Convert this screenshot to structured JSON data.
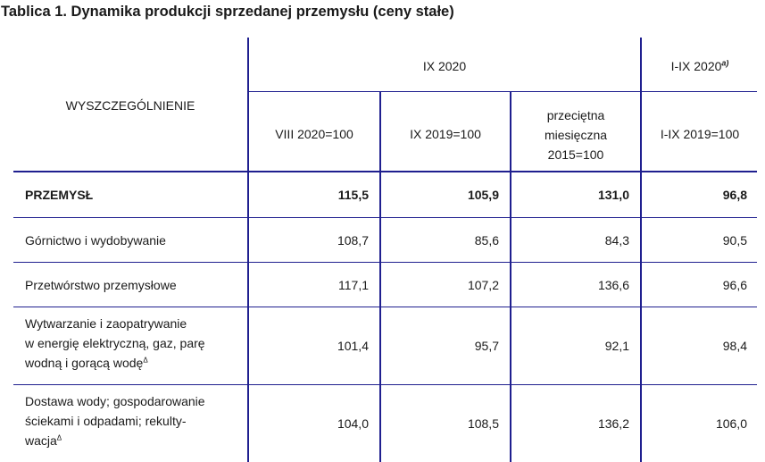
{
  "title": "Tablica 1. Dynamika produkcji sprzedanej przemysłu (ceny stałe)",
  "header": {
    "row_label": "WYSZCZEGÓLNIENIE",
    "group1": "IX 2020",
    "group2": "I-IX 2020",
    "group2_footnote": "a)",
    "col1": "VIII 2020=100",
    "col2": "IX 2019=100",
    "col3_line1": "przeciętna",
    "col3_line2": "miesięczna",
    "col3_line3": "2015=100",
    "col4": "I-IX 2019=100"
  },
  "rows": [
    {
      "label": "PRZEMYSŁ",
      "values": [
        "115,5",
        "105,9",
        "131,0",
        "96,8"
      ]
    },
    {
      "label": "Górnictwo i wydobywanie",
      "values": [
        "108,7",
        "85,6",
        "84,3",
        "90,5"
      ]
    },
    {
      "label": "Przetwórstwo przemysłowe",
      "values": [
        "117,1",
        "107,2",
        "136,6",
        "96,6"
      ]
    },
    {
      "label_lines": [
        "Wytwarzanie i zaopatrywanie",
        "w energię elektryczną, gaz, parę",
        "wodną i gorącą wodę"
      ],
      "footnote": "Δ",
      "values": [
        "101,4",
        "95,7",
        "92,1",
        "98,4"
      ]
    },
    {
      "label_lines": [
        "Dostawa wody; gospodarowanie",
        "ściekami i odpadami; rekulty-",
        "wacja"
      ],
      "footnote": "Δ",
      "values": [
        "104,0",
        "108,5",
        "136,2",
        "106,0"
      ]
    }
  ]
}
